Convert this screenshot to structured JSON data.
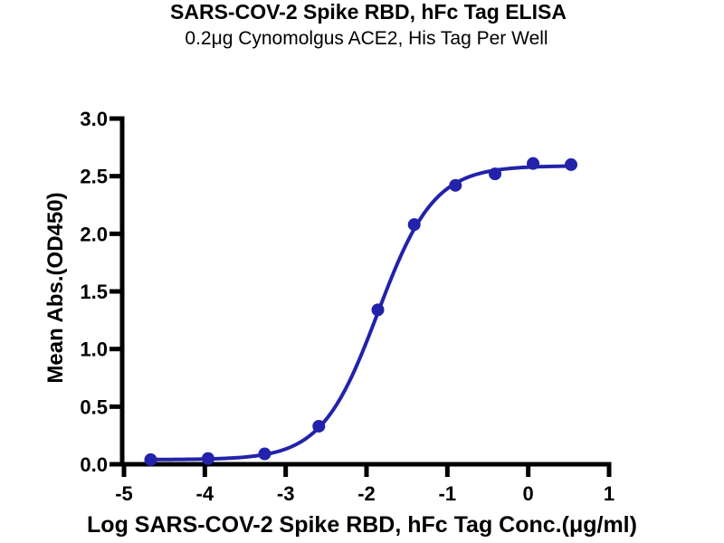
{
  "chart_data": {
    "type": "scatter",
    "title": "SARS-COV-2 Spike RBD, hFc Tag ELISA",
    "subtitle": "0.2μg Cynomolgus ACE2, His Tag Per Well",
    "xlabel": "Log SARS-COV-2 Spike RBD, hFc Tag Conc.(μg/ml)",
    "ylabel": "Mean Abs.(OD450)",
    "xlim": [
      -5,
      1
    ],
    "ylim": [
      0,
      3
    ],
    "x_ticks": [
      -5,
      -4,
      -3,
      -2,
      -1,
      0,
      1
    ],
    "x_tick_labels": [
      "-5",
      "-4",
      "-3",
      "-2",
      "-1",
      "0",
      "1"
    ],
    "y_ticks": [
      0,
      0.5,
      1,
      1.5,
      2,
      2.5,
      3
    ],
    "y_tick_labels": [
      "0.0",
      "0.5",
      "1.0",
      "1.5",
      "2.0",
      "2.5",
      "3.0"
    ],
    "grid": false,
    "legend": "none",
    "points": [
      [
        -4.67,
        0.04
      ],
      [
        -3.96,
        0.05
      ],
      [
        -3.26,
        0.09
      ],
      [
        -2.59,
        0.33
      ],
      [
        -1.86,
        1.34
      ],
      [
        -1.41,
        2.08
      ],
      [
        -0.9,
        2.42
      ],
      [
        -0.41,
        2.52
      ],
      [
        0.06,
        2.61
      ],
      [
        0.53,
        2.6
      ]
    ],
    "curve_fit": {
      "model": "4PL sigmoidal",
      "bottom": 0.04,
      "top": 2.59,
      "log_ec50": -1.86,
      "hill_slope": 1.25
    },
    "colors": {
      "curve": "#2222AA",
      "marker": "#2222AA",
      "axis": "#000000",
      "text": "#000000",
      "background": "#FFFFFF"
    }
  }
}
